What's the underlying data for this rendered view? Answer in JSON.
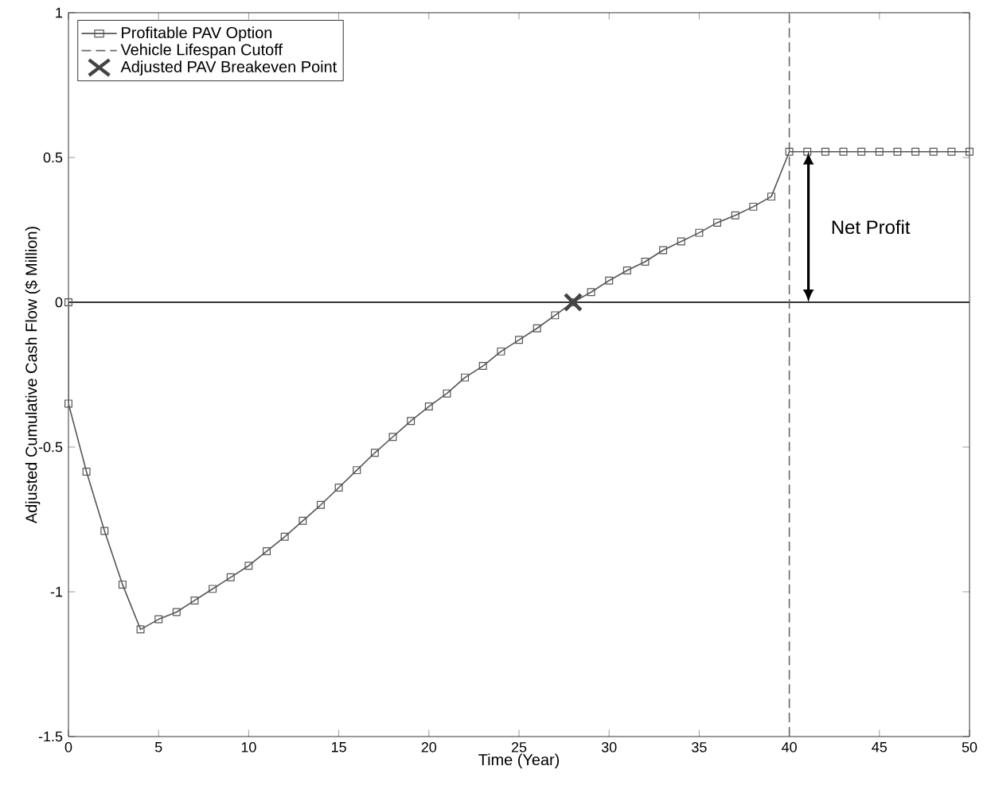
{
  "chart_data": {
    "type": "line",
    "xlabel": "Time (Year)",
    "ylabel": "Adjusted Cumulative Cash Flow ($ Million)",
    "xlim": [
      0,
      50
    ],
    "ylim": [
      -1.5,
      1
    ],
    "xticks": [
      0,
      5,
      10,
      15,
      20,
      25,
      30,
      35,
      40,
      45,
      50
    ],
    "yticks": [
      -1.5,
      -1,
      -0.5,
      0,
      0.5,
      1
    ],
    "grid": false,
    "legend": "top left",
    "series": [
      {
        "name": "Profitable PAV Option",
        "color": "#555555",
        "marker": "square",
        "line_style": "solid",
        "x": [
          0,
          0,
          1,
          2,
          3,
          4,
          5,
          6,
          7,
          8,
          9,
          10,
          11,
          12,
          13,
          14,
          15,
          16,
          17,
          18,
          19,
          20,
          21,
          22,
          23,
          24,
          25,
          26,
          27,
          28,
          29,
          30,
          31,
          32,
          33,
          34,
          35,
          36,
          37,
          38,
          39,
          40,
          41,
          42,
          43,
          44,
          45,
          46,
          47,
          48,
          49,
          50
        ],
        "values": [
          0,
          -0.35,
          -0.585,
          -0.79,
          -0.975,
          -1.13,
          -1.095,
          -1.07,
          -1.03,
          -0.99,
          -0.95,
          -0.91,
          -0.86,
          -0.81,
          -0.755,
          -0.7,
          -0.64,
          -0.58,
          -0.52,
          -0.465,
          -0.41,
          -0.36,
          -0.315,
          -0.26,
          -0.22,
          -0.17,
          -0.13,
          -0.09,
          -0.045,
          0,
          0.035,
          0.075,
          0.11,
          0.14,
          0.18,
          0.21,
          0.24,
          0.275,
          0.3,
          0.33,
          0.365,
          0.52,
          0.52,
          0.52,
          0.52,
          0.52,
          0.52,
          0.52,
          0.52,
          0.52,
          0.52,
          0.52
        ]
      },
      {
        "name": "Vehicle Lifespan Cutoff",
        "type": "line",
        "color": "#666666",
        "marker": "none",
        "line_style": "dashed",
        "x": [
          40,
          40
        ],
        "values": [
          -1.5,
          1
        ]
      },
      {
        "name": "Adjusted PAV Breakeven Point",
        "type": "scatter",
        "color": "#444444",
        "marker": "cross",
        "x": [
          28
        ],
        "values": [
          0
        ]
      }
    ],
    "ref_lines": [
      {
        "axis": "y",
        "value": 0,
        "color": "#333333",
        "line_style": "solid"
      }
    ],
    "annotations": [
      "Net Profit"
    ]
  }
}
